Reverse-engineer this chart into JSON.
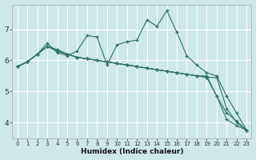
{
  "xlabel": "Humidex (Indice chaleur)",
  "bg_color": "#cce8e8",
  "line_color": "#2d7068",
  "grid_color": "#b0d8d8",
  "xlim": [
    -0.5,
    23.5
  ],
  "ylim": [
    3.5,
    7.8
  ],
  "yticks": [
    4,
    5,
    6,
    7
  ],
  "xticks": [
    0,
    1,
    2,
    3,
    4,
    5,
    6,
    7,
    8,
    9,
    10,
    11,
    12,
    13,
    14,
    15,
    16,
    17,
    18,
    19,
    20,
    21,
    22,
    23
  ],
  "series": [
    [
      5.8,
      5.95,
      6.2,
      6.55,
      6.25,
      6.15,
      6.3,
      6.8,
      6.75,
      5.85,
      6.5,
      6.6,
      6.65,
      7.3,
      7.1,
      7.6,
      6.9,
      6.15,
      5.85,
      5.6,
      5.5,
      4.85,
      4.3,
      3.75
    ],
    [
      5.8,
      5.95,
      6.2,
      6.45,
      6.3,
      6.2,
      6.1,
      6.05,
      6.0,
      5.95,
      5.9,
      5.85,
      5.8,
      5.75,
      5.7,
      5.65,
      5.6,
      5.55,
      5.5,
      5.5,
      4.85,
      4.3,
      4.05,
      3.75
    ],
    [
      5.8,
      5.95,
      6.2,
      6.45,
      6.35,
      6.2,
      6.1,
      6.05,
      6.0,
      5.95,
      5.9,
      5.85,
      5.8,
      5.75,
      5.7,
      5.65,
      5.6,
      5.55,
      5.5,
      5.45,
      5.45,
      4.45,
      4.0,
      3.75
    ],
    [
      5.8,
      5.95,
      6.2,
      6.45,
      6.3,
      6.2,
      6.1,
      6.05,
      6.0,
      5.95,
      5.9,
      5.85,
      5.8,
      5.75,
      5.7,
      5.65,
      5.6,
      5.55,
      5.5,
      5.45,
      4.85,
      4.1,
      3.9,
      3.75
    ]
  ]
}
